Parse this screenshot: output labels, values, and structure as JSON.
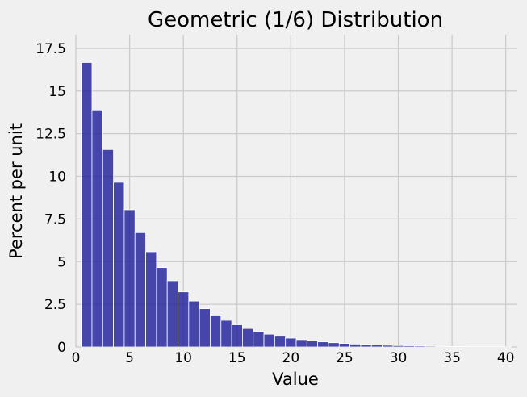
{
  "chart_data": {
    "type": "bar",
    "title": "Geometric (1/6) Distribution",
    "xlabel": "Value",
    "ylabel": "Percent per unit",
    "xlim": [
      0,
      41
    ],
    "ylim": [
      0,
      18.3
    ],
    "x_ticks": [
      0,
      5,
      10,
      15,
      20,
      25,
      30,
      35,
      40
    ],
    "y_ticks": [
      0,
      2.5,
      5,
      7.5,
      10,
      12.5,
      15,
      17.5
    ],
    "x_tick_labels": [
      "0",
      "5",
      "10",
      "15",
      "20",
      "25",
      "30",
      "35",
      "40"
    ],
    "y_tick_labels": [
      "0",
      "2.5",
      "5",
      "7.5",
      "10",
      "12.5",
      "15",
      "17.5"
    ],
    "grid": true,
    "bar_color": "#1a1a99",
    "bar_edge_color": "#ffffff",
    "bin_width": 1,
    "x": [
      1,
      2,
      3,
      4,
      5,
      6,
      7,
      8,
      9,
      10,
      11,
      12,
      13,
      14,
      15,
      16,
      17,
      18,
      19,
      20,
      21,
      22,
      23,
      24,
      25,
      26,
      27,
      28,
      29,
      30,
      31,
      32,
      33,
      34,
      35,
      36,
      37,
      38,
      39,
      40
    ],
    "values": [
      16.67,
      13.89,
      11.57,
      9.65,
      8.04,
      6.7,
      5.58,
      4.65,
      3.88,
      3.23,
      2.69,
      2.24,
      1.87,
      1.56,
      1.3,
      1.08,
      0.9,
      0.75,
      0.63,
      0.52,
      0.43,
      0.36,
      0.3,
      0.25,
      0.21,
      0.17,
      0.15,
      0.12,
      0.1,
      0.08,
      0.07,
      0.06,
      0.05,
      0.04,
      0.03,
      0.03,
      0.02,
      0.02,
      0.02,
      0.01
    ]
  }
}
